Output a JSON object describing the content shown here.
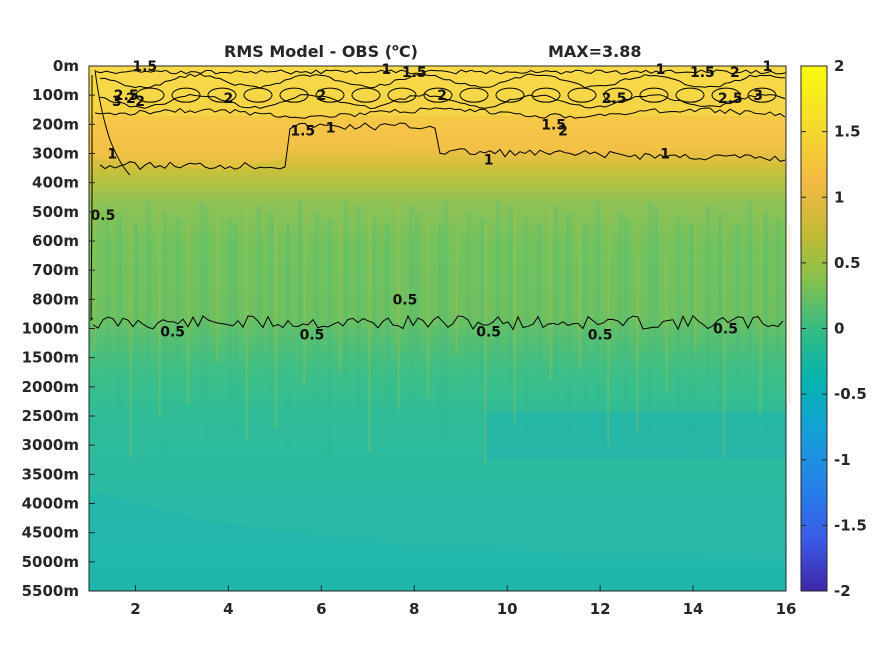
{
  "title": {
    "main_prefix": "RMS Model - OBS (",
    "main_sup": "o",
    "main_suffix": "C)",
    "max_text": "MAX=3.88"
  },
  "chart_data": {
    "type": "heatmap",
    "title": "RMS Model - OBS (oC)",
    "annotation": "MAX=3.88",
    "x_ticks": [
      2,
      4,
      6,
      8,
      10,
      12,
      14,
      16
    ],
    "xlim": [
      1,
      16
    ],
    "y_ticks": [
      "0m",
      "100m",
      "200m",
      "300m",
      "400m",
      "500m",
      "600m",
      "700m",
      "800m",
      "1000m",
      "1500m",
      "2000m",
      "2500m",
      "3000m",
      "3500m",
      "4000m",
      "4500m",
      "5000m",
      "5500m"
    ],
    "y_direction": "reversed",
    "colorbar": {
      "colormap": "parula",
      "ticks": [
        2,
        1.5,
        1,
        0.5,
        0,
        -0.5,
        -1,
        -1.5,
        -2
      ],
      "range": [
        -2,
        2
      ]
    },
    "contour_levels": [
      0.5,
      1,
      1.5,
      2,
      2.5,
      3
    ],
    "contour_labels": [
      {
        "text": "1.5",
        "x": 2.2,
        "depth": "0m"
      },
      {
        "text": "1",
        "x": 7.4,
        "depth": "0m"
      },
      {
        "text": "1.5",
        "x": 8.0,
        "depth": "0m"
      },
      {
        "text": "2",
        "x": 8.6,
        "depth": "100m"
      },
      {
        "text": "1",
        "x": 13.3,
        "depth": "0m"
      },
      {
        "text": "1.5",
        "x": 14.2,
        "depth": "0m"
      },
      {
        "text": "1",
        "x": 15.6,
        "depth": "0m"
      },
      {
        "text": "2.5",
        "x": 14.8,
        "depth": "100m"
      },
      {
        "text": "2",
        "x": 14.9,
        "depth": "0m"
      },
      {
        "text": "3",
        "x": 15.4,
        "depth": "100m"
      },
      {
        "text": "2.5",
        "x": 12.3,
        "depth": "100m"
      },
      {
        "text": "2",
        "x": 11.2,
        "depth": "200m"
      },
      {
        "text": "1.5",
        "x": 11.0,
        "depth": "200m"
      },
      {
        "text": "2",
        "x": 4.0,
        "depth": "100m"
      },
      {
        "text": "1.5",
        "x": 5.6,
        "depth": "200m"
      },
      {
        "text": "2",
        "x": 6.0,
        "depth": "100m"
      },
      {
        "text": "1",
        "x": 6.2,
        "depth": "200m"
      },
      {
        "text": "3",
        "x": 1.6,
        "depth": "100m"
      },
      {
        "text": "2.5",
        "x": 1.8,
        "depth": "100m"
      },
      {
        "text": "2",
        "x": 1.9,
        "depth": "100m"
      },
      {
        "text": "2",
        "x": 2.1,
        "depth": "100m"
      },
      {
        "text": "1",
        "x": 1.5,
        "depth": "300m"
      },
      {
        "text": "0.5",
        "x": 1.3,
        "depth": "500m"
      },
      {
        "text": "1",
        "x": 9.6,
        "depth": "300m"
      },
      {
        "text": "1",
        "x": 13.4,
        "depth": "300m"
      },
      {
        "text": "0.5",
        "x": 2.8,
        "depth": "1000m"
      },
      {
        "text": "0.5",
        "x": 5.8,
        "depth": "1000m"
      },
      {
        "text": "0.5",
        "x": 7.8,
        "depth": "800m"
      },
      {
        "text": "0.5",
        "x": 9.6,
        "depth": "1000m"
      },
      {
        "text": "0.5",
        "x": 12.0,
        "depth": "1000m"
      },
      {
        "text": "0.5",
        "x": 14.7,
        "depth": "1000m"
      }
    ],
    "xlabel": "",
    "ylabel": ""
  }
}
